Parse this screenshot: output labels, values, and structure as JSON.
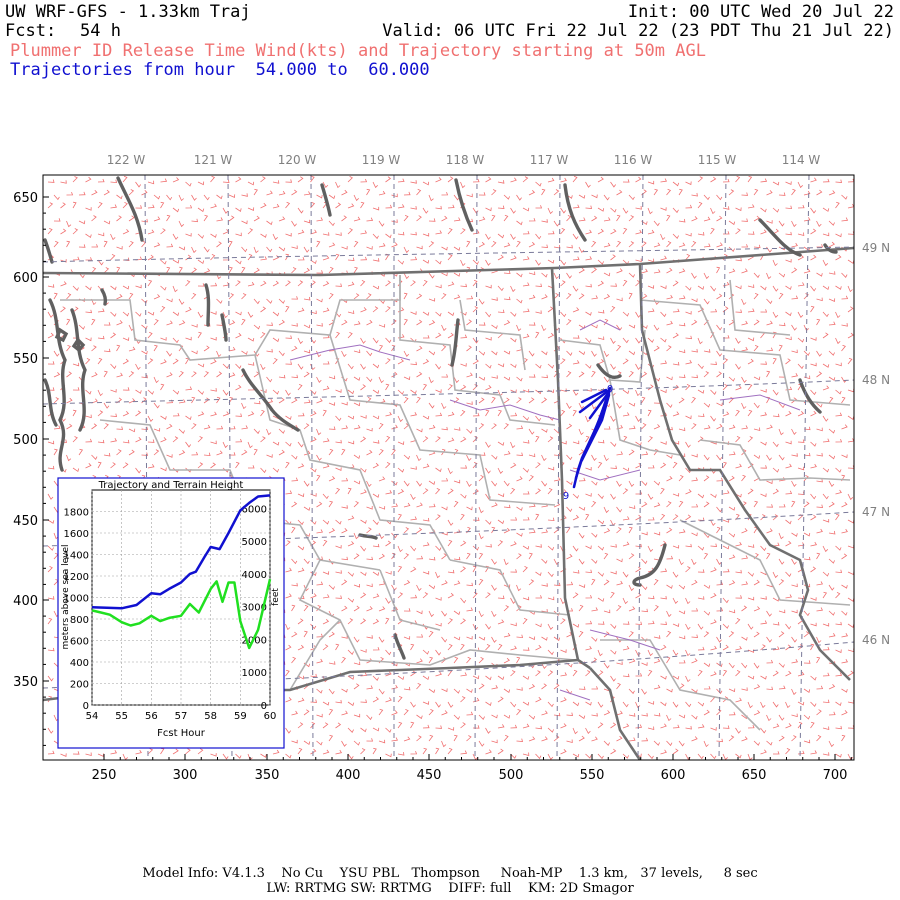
{
  "header": {
    "title": "UW WRF-GFS - 1.33km Traj",
    "init": "Init: 00 UTC Wed 20 Jul 22",
    "fcst_label": "Fcst:",
    "fcst_value": "54 h",
    "valid": "Valid: 06 UTC Fri 22 Jul 22 (23 PDT Thu 21 Jul 22)",
    "subtitle_wind": "Plummer ID Release Time Wind(kts) and Trajectory starting at 50m AGL",
    "subtitle_traj": "Trajectories from hour  54.000 to  60.000"
  },
  "map": {
    "x_ticks": [
      "250",
      "300",
      "350",
      "400",
      "450",
      "500",
      "550",
      "600",
      "650",
      "700"
    ],
    "y_ticks": [
      "650",
      "600",
      "550",
      "500",
      "450",
      "400",
      "350"
    ],
    "lon_labels": [
      "122 W",
      "121 W",
      "120 W",
      "119 W",
      "118 W",
      "117 W",
      "116 W",
      "115 W",
      "114 W"
    ],
    "lat_labels": [
      "49 N",
      "48 N",
      "47 N",
      "46 N"
    ],
    "trajectory_label_end": "0",
    "trajectory_label_start": "9",
    "colors": {
      "wind_barbs": "#f07070",
      "trajectory": "#1010d0",
      "state_border": "#707070",
      "county_border": "#b0b0b0",
      "coastline": "#606060",
      "river": "#a070c0",
      "grid": "#7a7a9a"
    }
  },
  "inset": {
    "title": "Trajectory and Terrain Height",
    "ylabel_left": "meters above sea level",
    "ylabel_right": "feet",
    "xlabel": "Fcst Hour",
    "x_ticks": [
      "54",
      "55",
      "56",
      "57",
      "58",
      "59",
      "60"
    ],
    "y_ticks_left": [
      "0",
      "200",
      "400",
      "600",
      "800",
      "1000",
      "1200",
      "1400",
      "1600",
      "1800"
    ],
    "y_ticks_right": [
      "0",
      "1000",
      "2000",
      "3000",
      "4000",
      "5000",
      "6000"
    ],
    "colors": {
      "trajectory": "#1010d0",
      "terrain": "#20e020"
    }
  },
  "chart_data": {
    "type": "line",
    "title": "Trajectory and Terrain Height",
    "xlabel": "Fcst Hour",
    "ylabel": "meters above sea level",
    "xlim": [
      54,
      60
    ],
    "ylim": [
      0,
      2000
    ],
    "series": [
      {
        "name": "",
        "x": [
          54.0,
          54.5,
          55.0,
          55.5,
          56.0,
          56.3,
          56.6,
          57.0,
          57.3,
          57.5,
          57.8,
          58.0,
          58.3,
          58.6,
          59.0,
          59.3,
          59.6,
          60.0
        ],
        "values": [
          910,
          905,
          900,
          930,
          1040,
          1030,
          1080,
          1140,
          1220,
          1240,
          1380,
          1470,
          1450,
          1600,
          1810,
          1880,
          1940,
          1950
        ]
      },
      {
        "name": "",
        "x": [
          54.0,
          54.3,
          54.6,
          55.0,
          55.3,
          55.6,
          56.0,
          56.3,
          56.6,
          57.0,
          57.3,
          57.6,
          58.0,
          58.2,
          58.4,
          58.6,
          58.8,
          59.0,
          59.3,
          59.6,
          60.0
        ],
        "values": [
          880,
          860,
          840,
          770,
          740,
          760,
          830,
          780,
          810,
          830,
          940,
          860,
          1080,
          1150,
          960,
          1140,
          1140,
          780,
          530,
          700,
          1170
        ]
      }
    ]
  },
  "footer": {
    "line1": "Model Info: V4.1.3    No Cu    YSU PBL   Thompson     Noah-MP    1.3 km,   37 levels,     8 sec",
    "line2": "LW: RRTMG SW: RRTMG    DIFF: full    KM: 2D Smagor"
  }
}
